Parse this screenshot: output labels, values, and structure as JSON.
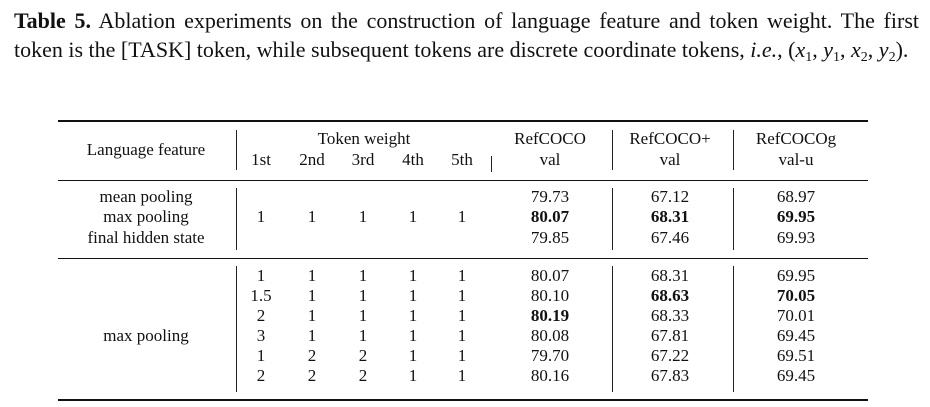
{
  "caption": {
    "label": "Table 5.",
    "text_before_math": " Ablation experiments on the construction of language feature and token weight. The first token is the [TASK] token, while subsequent tokens are discrete coordinate tokens, ",
    "ie": "i.e.",
    "math_open": ", (",
    "x1": "x",
    "x1_sub": "1",
    "y1": "y",
    "y1_sub": "1",
    "x2": "x",
    "x2_sub": "2",
    "y2": "y",
    "y2_sub": "2",
    "math_close": ")."
  },
  "table": {
    "headers": {
      "language_feature": "Language feature",
      "token_weight": "Token weight",
      "tokens": [
        "1st",
        "2nd",
        "3rd",
        "4th",
        "5th"
      ],
      "refcoco": "RefCOCO",
      "refcoco_split": "val",
      "refcoco_plus": "RefCOCO+",
      "refcoco_plus_split": "val",
      "refcocog": "RefCOCOg",
      "refcocog_split": "val-u"
    },
    "group1": {
      "features": [
        "mean pooling",
        "max pooling",
        "final hidden state"
      ],
      "weights": [
        "1",
        "1",
        "1",
        "1",
        "1"
      ],
      "rows": [
        {
          "refcoco": "79.73",
          "refcoco_plus": "67.12",
          "refcocog": "68.97"
        },
        {
          "refcoco": "80.07",
          "refcoco_plus": "68.31",
          "refcocog": "69.95"
        },
        {
          "refcoco": "79.85",
          "refcoco_plus": "67.46",
          "refcocog": "69.93"
        }
      ]
    },
    "group2": {
      "feature": "max pooling",
      "rows": [
        {
          "w": [
            "1",
            "1",
            "1",
            "1",
            "1"
          ],
          "refcoco": "80.07",
          "refcoco_plus": "68.31",
          "refcocog": "69.95"
        },
        {
          "w": [
            "1.5",
            "1",
            "1",
            "1",
            "1"
          ],
          "refcoco": "80.10",
          "refcoco_plus": "68.63",
          "refcocog": "70.05"
        },
        {
          "w": [
            "2",
            "1",
            "1",
            "1",
            "1"
          ],
          "refcoco": "80.19",
          "refcoco_plus": "68.33",
          "refcocog": "70.01"
        },
        {
          "w": [
            "3",
            "1",
            "1",
            "1",
            "1"
          ],
          "refcoco": "80.08",
          "refcoco_plus": "67.81",
          "refcocog": "69.45"
        },
        {
          "w": [
            "1",
            "2",
            "2",
            "1",
            "1"
          ],
          "refcoco": "79.70",
          "refcoco_plus": "67.22",
          "refcocog": "69.51"
        },
        {
          "w": [
            "2",
            "2",
            "2",
            "1",
            "1"
          ],
          "refcoco": "80.16",
          "refcoco_plus": "67.83",
          "refcocog": "69.45"
        }
      ]
    }
  }
}
